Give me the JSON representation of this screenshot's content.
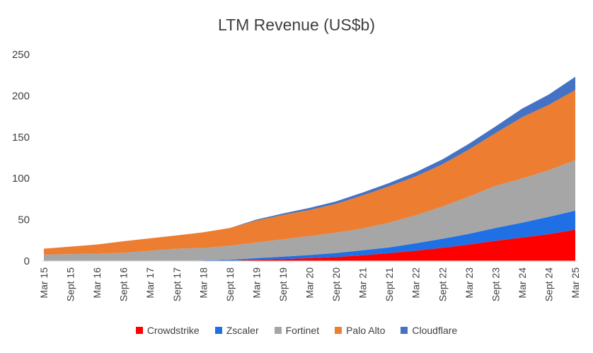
{
  "chart_data": {
    "type": "area",
    "title": "LTM Revenue (US$b)",
    "xlabel": "",
    "ylabel": "",
    "ylim": [
      0,
      250
    ],
    "yticks": [
      0,
      50,
      100,
      150,
      200,
      250
    ],
    "stacked": true,
    "grid": false,
    "legend_position": "bottom",
    "x": [
      "Mar 15",
      "Sept 15",
      "Mar 16",
      "Sept 16",
      "Mar 17",
      "Sept 17",
      "Mar 18",
      "Sept 18",
      "Mar 19",
      "Sept 19",
      "Mar 20",
      "Sept 20",
      "Mar 21",
      "Sept 21",
      "Mar 22",
      "Sept 22",
      "Mar 23",
      "Sept 23",
      "Mar 24",
      "Sept 24",
      "Mar 25"
    ],
    "series": [
      {
        "name": "Crowdstrike",
        "color": "#ff0000",
        "values": [
          0,
          0,
          0,
          0,
          0,
          0,
          0,
          0.3,
          1.5,
          2.3,
          3.5,
          5,
          7,
          9.5,
          12.5,
          16,
          20,
          24.5,
          28.5,
          32.5,
          38
        ]
      },
      {
        "name": "Zscaler",
        "color": "#1f6fe5",
        "values": [
          0,
          0,
          0,
          0,
          0,
          0,
          0.8,
          1.2,
          2,
          3,
          3.8,
          4.8,
          6,
          7,
          9,
          11,
          13,
          15.5,
          18,
          21,
          23
        ]
      },
      {
        "name": "Fortinet",
        "color": "#a6a6a6",
        "values": [
          8,
          8.5,
          9,
          10,
          12.5,
          15,
          15,
          17,
          19,
          21,
          23,
          24.5,
          26.5,
          30,
          34,
          39,
          45,
          51,
          53.5,
          56.5,
          61
        ]
      },
      {
        "name": "Palo Alto",
        "color": "#ed7d31",
        "values": [
          7,
          9,
          11,
          14,
          15,
          16,
          19,
          21.5,
          26.5,
          29.5,
          31.5,
          35,
          40,
          44,
          47,
          51,
          57,
          64,
          74,
          79,
          85
        ]
      },
      {
        "name": "Cloudflare",
        "color": "#4472c4",
        "values": [
          0,
          0,
          0,
          0,
          0,
          0,
          0,
          0,
          1.2,
          1.8,
          2.5,
          3,
          3.5,
          4,
          5,
          6,
          7,
          8,
          10.5,
          12.5,
          16
        ]
      }
    ]
  }
}
